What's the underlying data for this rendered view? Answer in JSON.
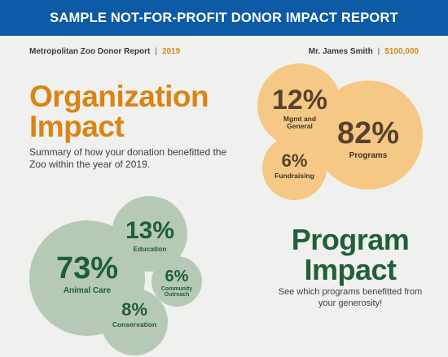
{
  "banner": {
    "title": "SAMPLE NOT-FOR-PROFIT DONOR IMPACT REPORT"
  },
  "meta": {
    "report_name": "Metropolitan Zoo Donor Report",
    "year": "2019",
    "donor_name": "Mr. James Smith",
    "donation_amount": "$100,000"
  },
  "organization": {
    "heading_line1": "Organization",
    "heading_line2": "Impact",
    "summary": "Summary of how your donation benefitted the Zoo within the year of 2019.",
    "stats": [
      {
        "value": "12%",
        "label_line1": "Mgmt and",
        "label_line2": "General"
      },
      {
        "value": "82%",
        "label_line1": "Programs",
        "label_line2": ""
      },
      {
        "value": "6%",
        "label_line1": "Fundraising",
        "label_line2": ""
      }
    ]
  },
  "program": {
    "heading_line1": "Program",
    "heading_line2": "Impact",
    "summary": "See which programs benefitted from your generosity!",
    "stats": [
      {
        "value": "73%",
        "label_line1": "Animal Care",
        "label_line2": ""
      },
      {
        "value": "13%",
        "label_line1": "Education",
        "label_line2": ""
      },
      {
        "value": "6%",
        "label_line1": "Community",
        "label_line2": "Outreach"
      },
      {
        "value": "8%",
        "label_line1": "Conservation",
        "label_line2": ""
      }
    ]
  },
  "colors": {
    "banner": "#0d5aa6",
    "organization_accent": "#d98414",
    "organization_bubble": "#f6c886",
    "program_accent": "#215f38",
    "program_bubble": "#b6c9b6",
    "background": "#f0f0ee"
  }
}
